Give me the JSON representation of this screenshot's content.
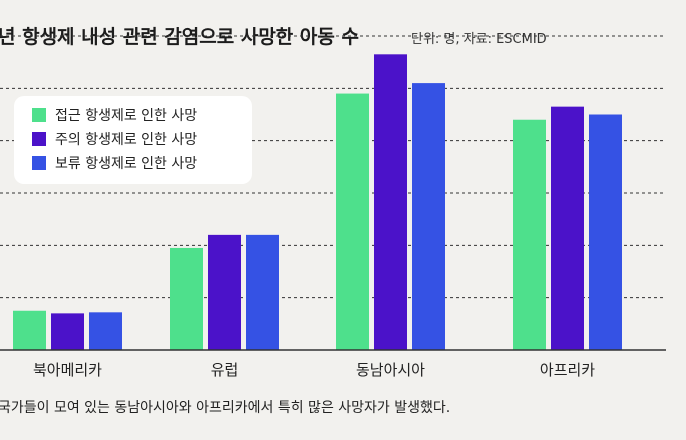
{
  "chart_data": {
    "type": "bar",
    "title": "년 항생제 내성 관련 감염으로 사망한 아동 수",
    "source": "단위: 명, 자료: ESCMID",
    "caption": "국가들이 모여 있는 동남아시아와 아프리카에서 특히 많은 사망자가 발생했다.",
    "categories": [
      "북아메리카",
      "유럽",
      "동남아시아",
      "아프리카"
    ],
    "series": [
      {
        "name": "접근 항생제로 인한 사망",
        "color": "#4ee08c",
        "values": [
          0.75,
          1.95,
          4.9,
          4.4
        ]
      },
      {
        "name": "주의 항생제로 인한 사망",
        "color": "#4b12c9",
        "values": [
          0.7,
          2.2,
          5.65,
          4.65
        ]
      },
      {
        "name": "보류 항생제로 인한 사망",
        "color": "#3552e4",
        "values": [
          0.72,
          2.2,
          5.1,
          4.5
        ]
      }
    ],
    "ylim": [
      0,
      6
    ],
    "grid": true,
    "legend": "top-left"
  }
}
